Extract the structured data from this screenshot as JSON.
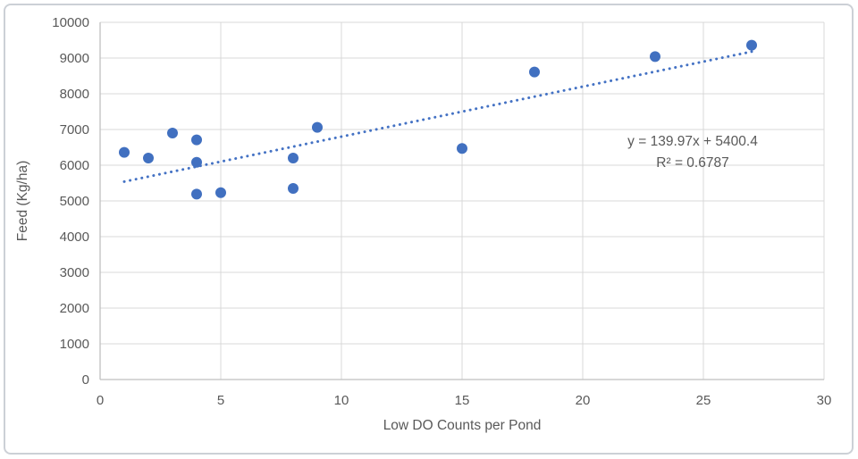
{
  "chart_data": {
    "type": "scatter",
    "title": "",
    "xlabel": "Low DO Counts per Pond",
    "ylabel": "Feed (Kg/ha)",
    "xlim": [
      0,
      30
    ],
    "ylim": [
      0,
      10000
    ],
    "xticks": [
      0,
      5,
      10,
      15,
      20,
      25,
      30
    ],
    "yticks": [
      0,
      1000,
      2000,
      3000,
      4000,
      5000,
      6000,
      7000,
      8000,
      9000,
      10000
    ],
    "grid": true,
    "legend_position": "none",
    "points": [
      {
        "x": 1,
        "y": 6360
      },
      {
        "x": 2,
        "y": 6200
      },
      {
        "x": 3,
        "y": 6900
      },
      {
        "x": 4,
        "y": 6710
      },
      {
        "x": 4,
        "y": 6080
      },
      {
        "x": 4,
        "y": 5190
      },
      {
        "x": 5,
        "y": 5230
      },
      {
        "x": 8,
        "y": 6200
      },
      {
        "x": 8,
        "y": 5350
      },
      {
        "x": 9,
        "y": 7060
      },
      {
        "x": 15,
        "y": 6470
      },
      {
        "x": 18,
        "y": 8610
      },
      {
        "x": 23,
        "y": 9040
      },
      {
        "x": 27,
        "y": 9360
      }
    ],
    "trendline": {
      "type": "linear",
      "slope": 139.97,
      "intercept": 5400.4,
      "x_start": 1,
      "x_end": 27,
      "style": "dotted",
      "equation_label": "y = 139.97x + 5400.4",
      "r_squared_label": "R² = 0.6787"
    },
    "colors": {
      "point": "#4170c0",
      "trendline": "#4472C4",
      "gridline": "#D9D9D9",
      "axis_line": "#BFBFBF",
      "text": "#595959"
    }
  }
}
